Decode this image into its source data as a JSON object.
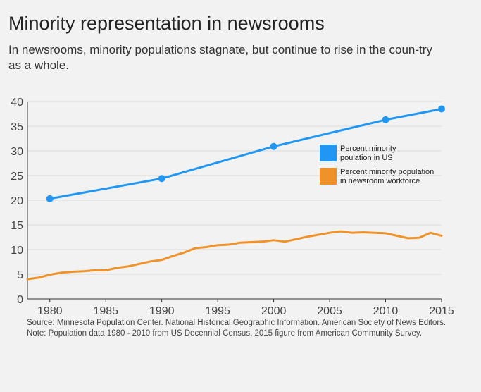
{
  "title": "Minority representation in newsrooms",
  "subtitle": "In newsrooms, minority populations stagnate, but continue to rise in the coun-try as a whole.",
  "source_line1": "Source: Minnesota Population Center. National Historical Geographic Information. American Society of News Editors.",
  "source_line2": "Note: Population data 1980 - 2010 from US Decennial Census. 2015 figure from American Community Survey.",
  "colors": {
    "us": "#2196f3",
    "newsroom": "#f0922a",
    "grid": "#d9d9d9",
    "axis": "#333333"
  },
  "chart_data": {
    "type": "line",
    "title": "Minority representation in newsrooms",
    "xlabel": "",
    "ylabel": "",
    "xlim": [
      1978,
      2015
    ],
    "ylim": [
      0,
      40
    ],
    "xticks": [
      1980,
      1985,
      1990,
      1995,
      2000,
      2005,
      2010,
      2015
    ],
    "yticks": [
      0,
      5,
      10,
      15,
      20,
      25,
      30,
      35,
      40
    ],
    "grid": true,
    "legend_position": "right",
    "series": [
      {
        "name": "Percent minority poulation in US",
        "legend_lines": [
          "Percent minority",
          "poulation in US"
        ],
        "markers": true,
        "x": [
          1980,
          1990,
          2000,
          2010,
          2015
        ],
        "y": [
          20.3,
          24.4,
          30.9,
          36.3,
          38.5
        ]
      },
      {
        "name": "Percent minority population in newsroom workforce",
        "legend_lines": [
          "Percent minority population",
          "in newsroom workforce"
        ],
        "markers": false,
        "x": [
          1978,
          1979,
          1980,
          1981,
          1982,
          1983,
          1984,
          1985,
          1986,
          1987,
          1988,
          1989,
          1990,
          1991,
          1992,
          1993,
          1994,
          1995,
          1996,
          1997,
          1998,
          1999,
          2000,
          2001,
          2002,
          2003,
          2004,
          2005,
          2006,
          2007,
          2008,
          2009,
          2010,
          2011,
          2012,
          2013,
          2014,
          2015
        ],
        "y": [
          4.0,
          4.3,
          4.9,
          5.3,
          5.5,
          5.6,
          5.8,
          5.8,
          6.3,
          6.6,
          7.1,
          7.6,
          7.9,
          8.7,
          9.4,
          10.3,
          10.5,
          10.9,
          11.0,
          11.4,
          11.5,
          11.6,
          11.9,
          11.6,
          12.1,
          12.6,
          13.0,
          13.4,
          13.7,
          13.4,
          13.5,
          13.4,
          13.3,
          12.8,
          12.3,
          12.4,
          13.4,
          12.8
        ]
      }
    ]
  }
}
